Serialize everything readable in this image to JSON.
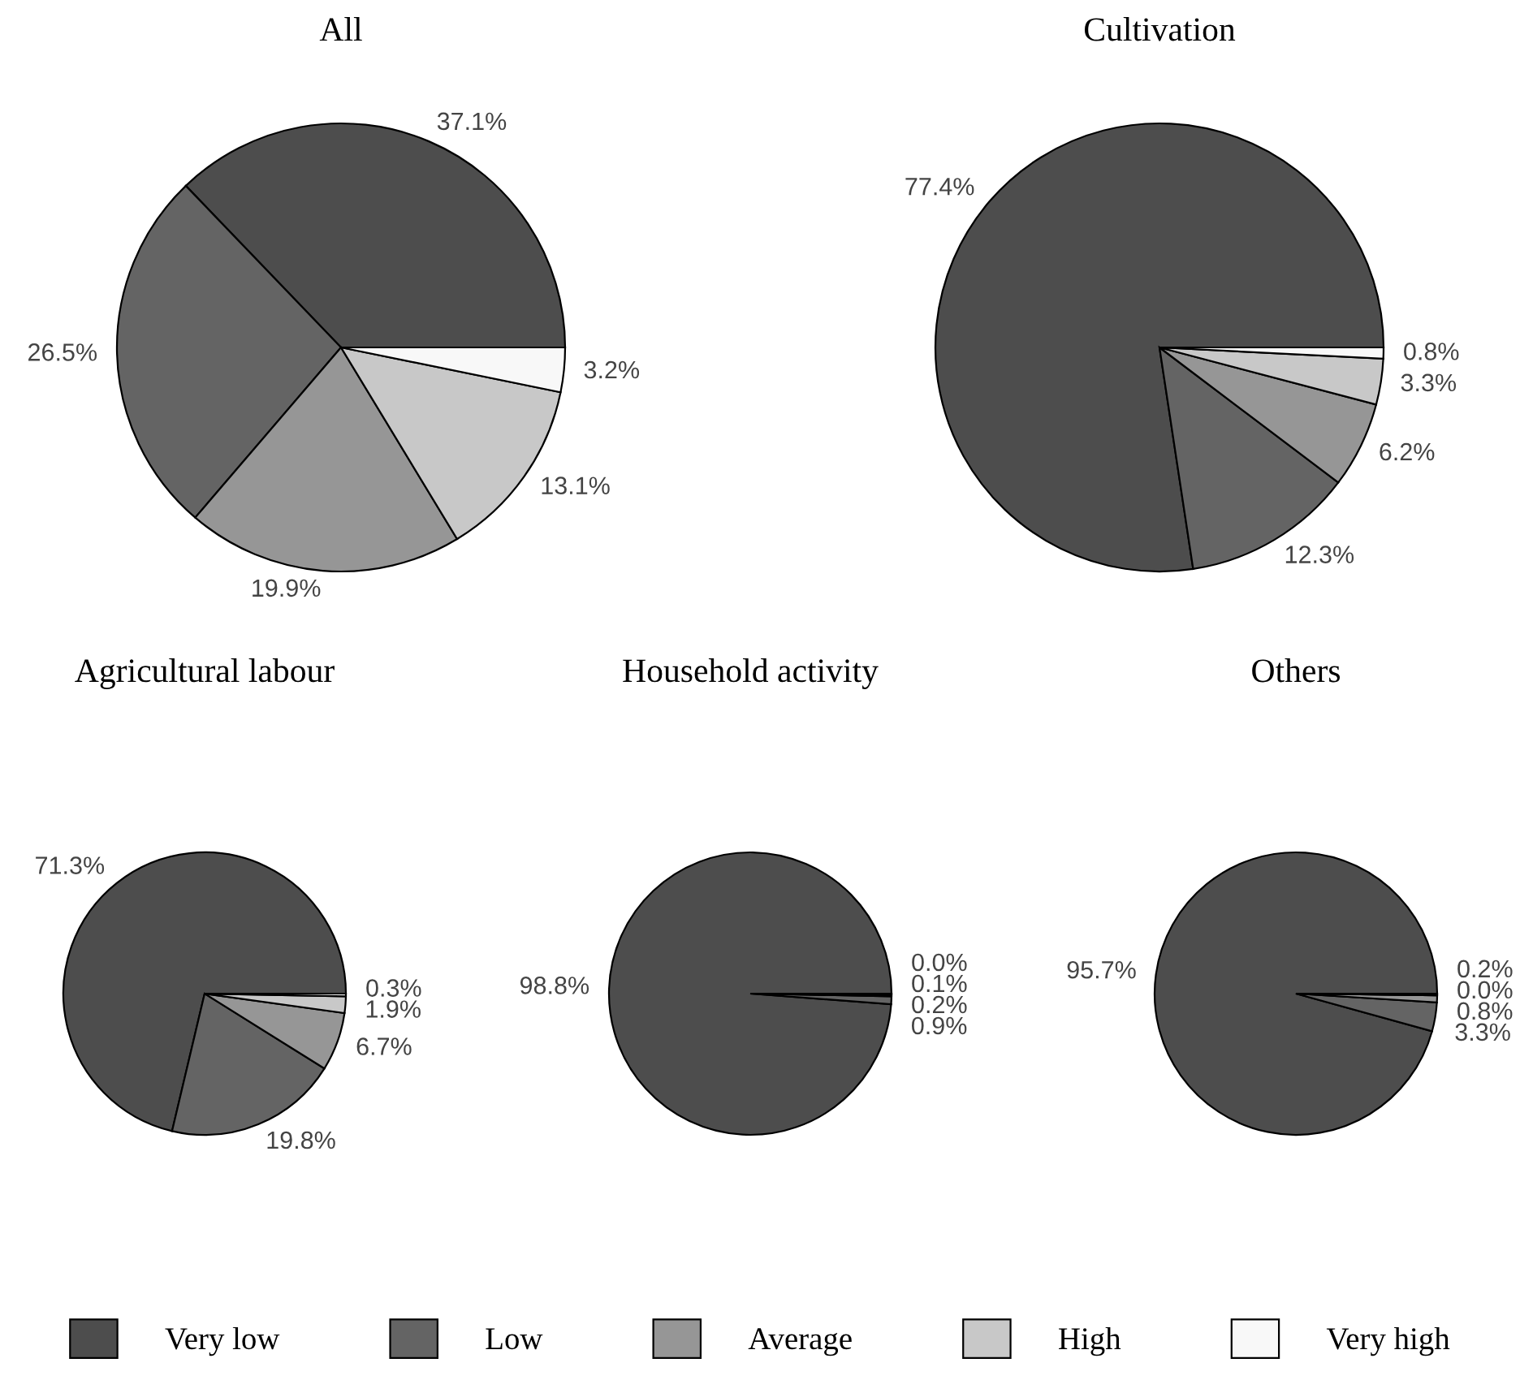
{
  "chart_data": [
    {
      "type": "pie",
      "title": "All",
      "categories": [
        "Very low",
        "Low",
        "Average",
        "High",
        "Very high"
      ],
      "values": [
        37.1,
        26.5,
        19.9,
        13.1,
        3.2
      ],
      "value_labels": [
        "37.1%",
        "26.5%",
        "19.9%",
        "13.1%",
        "3.2%"
      ],
      "colors": [
        "#4d4d4d",
        "#646464",
        "#969696",
        "#c8c8c8",
        "#f8f8f8"
      ],
      "legend": "bottom"
    },
    {
      "type": "pie",
      "title": "Cultivation",
      "categories": [
        null,
        null,
        null,
        null,
        null
      ],
      "values": [
        77.4,
        12.3,
        6.2,
        3.3,
        0.8
      ],
      "value_labels": [
        "77.4%",
        "12.3%",
        "6.2%",
        "3.3%",
        "0.8%"
      ],
      "colors": [
        "#4d4d4d",
        "#646464",
        "#969696",
        "#c8c8c8",
        "#f8f8f8"
      ]
    },
    {
      "type": "pie",
      "title": "Agricultural labour",
      "categories": [
        null,
        null,
        null,
        null,
        null
      ],
      "values": [
        71.3,
        19.8,
        6.7,
        1.9,
        0.3
      ],
      "value_labels": [
        "71.3%",
        "19.8%",
        "6.7%",
        "1.9%",
        "0.3%"
      ],
      "colors": [
        "#4d4d4d",
        "#646464",
        "#969696",
        "#c8c8c8",
        "#f8f8f8"
      ]
    },
    {
      "type": "pie",
      "title": "Household activity",
      "categories": [
        null,
        null,
        null,
        null,
        null
      ],
      "values": [
        98.8,
        0.9,
        0.2,
        0.1,
        0.0
      ],
      "value_labels": [
        "98.8%",
        "0.9%",
        "0.2%",
        "0.1%",
        "0.0%"
      ],
      "colors": [
        "#4d4d4d",
        "#646464",
        "#969696",
        "#c8c8c8",
        "#f8f8f8"
      ]
    },
    {
      "type": "pie",
      "title": "Others",
      "categories": [
        null,
        null,
        null,
        null,
        null
      ],
      "values": [
        95.7,
        3.3,
        0.8,
        0.0,
        0.2
      ],
      "value_labels": [
        "95.7%",
        "3.3%",
        "0.8%",
        "0.0%",
        "0.2%"
      ],
      "colors": [
        "#4d4d4d",
        "#646464",
        "#969696",
        "#c8c8c8",
        "#f8f8f8"
      ]
    }
  ]
}
